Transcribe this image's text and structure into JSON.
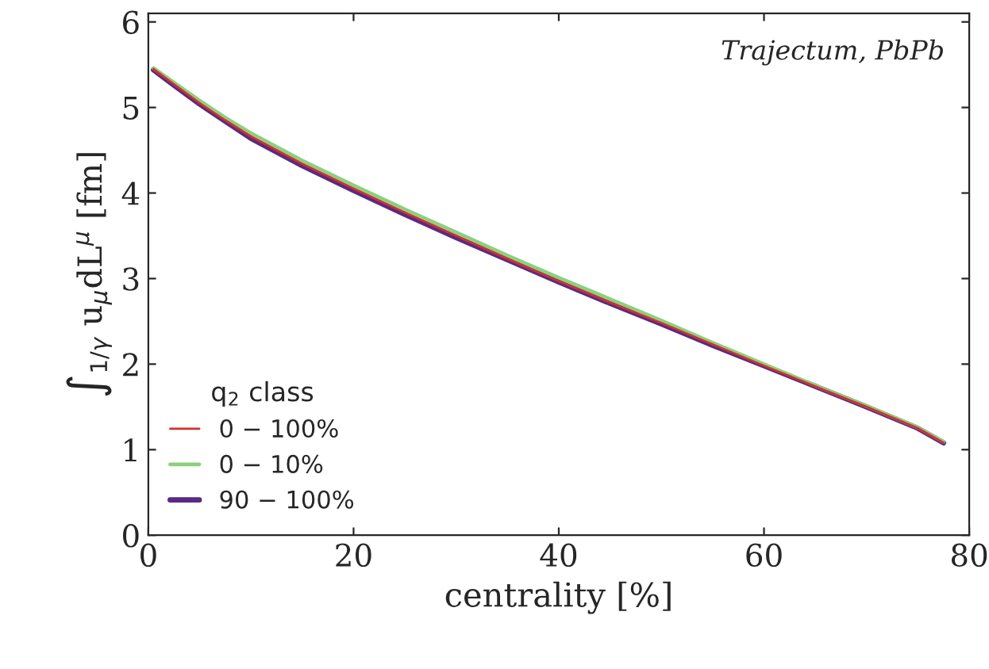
{
  "chart_data": {
    "type": "line",
    "xlabel": "centrality [%]",
    "ylabel": "∫$_{1/γ}$ u$_{μ}$dL$^{μ}$ [fm]",
    "legend_title": "q$_{2}$ class",
    "legend": "bottom left",
    "annotations": [
      "Trajectum, PbPb"
    ],
    "x": [
      0.5,
      2.5,
      5,
      7.5,
      10,
      15,
      20,
      25,
      30,
      35,
      40,
      45,
      50,
      55,
      60,
      65,
      70,
      75,
      77.5
    ],
    "series": [
      {
        "name": "0 − 100%",
        "color": "#d0302a",
        "values": [
          5.45,
          5.27,
          5.05,
          4.85,
          4.66,
          4.34,
          4.05,
          3.77,
          3.5,
          3.23,
          2.97,
          2.72,
          2.48,
          2.23,
          1.98,
          1.74,
          1.5,
          1.25,
          1.08
        ]
      },
      {
        "name": "0 − 10%",
        "color": "#8cd07e",
        "values": [
          5.46,
          5.29,
          5.08,
          4.88,
          4.7,
          4.38,
          4.09,
          3.81,
          3.54,
          3.27,
          3.01,
          2.76,
          2.51,
          2.25,
          2.0,
          1.75,
          1.51,
          1.26,
          1.09
        ]
      },
      {
        "name": "90 − 100%",
        "color": "#5a2a84",
        "values": [
          5.44,
          5.26,
          5.04,
          4.84,
          4.64,
          4.32,
          4.03,
          3.75,
          3.48,
          3.22,
          2.96,
          2.71,
          2.47,
          2.22,
          1.98,
          1.74,
          1.5,
          1.25,
          1.08
        ]
      }
    ],
    "xlim": [
      0,
      80
    ],
    "xticks": [
      0,
      20,
      40,
      60,
      80
    ],
    "ylim": [
      0,
      6.1
    ],
    "yticks": [
      0,
      1,
      2,
      3,
      4,
      5,
      6
    ],
    "grid": false,
    "line_style": "solid",
    "marker": "none"
  }
}
